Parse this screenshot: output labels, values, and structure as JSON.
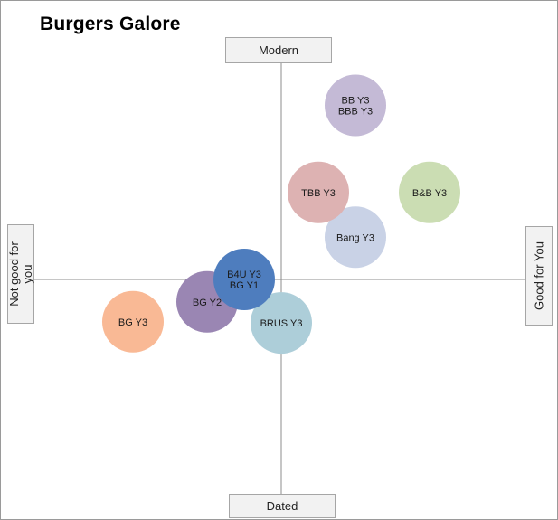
{
  "chart_data": {
    "type": "scatter",
    "title": "Burgers Galore",
    "axes": {
      "y_positive": "Modern",
      "y_negative": "Dated",
      "x_negative_line1": "Not good for",
      "x_negative_line2": "you",
      "x_positive": "Good for You"
    },
    "xlim": [
      -10,
      10
    ],
    "ylim": [
      -10,
      10
    ],
    "grid": false,
    "legend": "none",
    "points": [
      {
        "labels": [
          "BG Y3"
        ],
        "x": -8.0,
        "y": -1.7,
        "color": "#F9B995"
      },
      {
        "labels": [
          "BG Y2"
        ],
        "x": -4.0,
        "y": -0.9,
        "color": "#9A86B3"
      },
      {
        "labels": [
          "BRUS Y3"
        ],
        "x": 0.0,
        "y": -1.75,
        "color": "#ADCED9"
      },
      {
        "labels": [
          "B4U Y3",
          "BG Y1"
        ],
        "x": -2.0,
        "y": 0.0,
        "color": "#4E7DBE"
      },
      {
        "labels": [
          "Bang Y3"
        ],
        "x": 4.0,
        "y": 1.7,
        "color": "#C9D2E6"
      },
      {
        "labels": [
          "TBB Y3"
        ],
        "x": 2.0,
        "y": 3.5,
        "color": "#DDB2B2"
      },
      {
        "labels": [
          "B&B Y3"
        ],
        "x": 8.0,
        "y": 3.5,
        "color": "#CBDDB3"
      },
      {
        "labels": [
          "BB Y3",
          "BBB Y3"
        ],
        "x": 4.0,
        "y": 7.0,
        "color": "#C4BAD6"
      }
    ]
  }
}
